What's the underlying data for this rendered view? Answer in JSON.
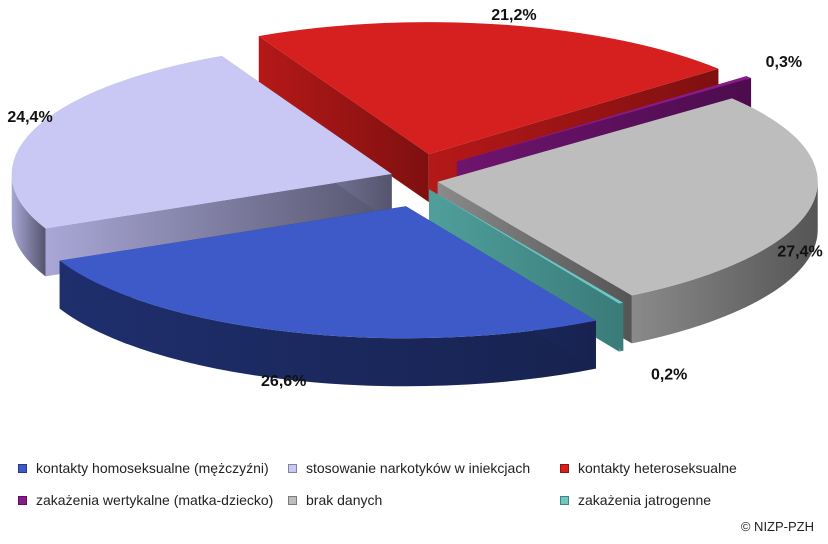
{
  "chart_data": {
    "type": "pie",
    "style": "3d-exploded",
    "slices": [
      {
        "name": "kontakty homoseksualne (mężczyźni)",
        "value": 26.6,
        "label": "26,6%",
        "color": "#3d5ac8"
      },
      {
        "name": "stosowanie narkotyków w iniekcjach",
        "value": 24.4,
        "label": "24,4%",
        "color": "#c9c8f4"
      },
      {
        "name": "kontakty heteroseksualne",
        "value": 21.2,
        "label": "21,2%",
        "color": "#d61f1f"
      },
      {
        "name": "zakażenia wertykalne (matka-dziecko)",
        "value": 0.3,
        "label": "0,3%",
        "color": "#8a1a8a"
      },
      {
        "name": "brak danych",
        "value": 27.4,
        "label": "27,4%",
        "color": "#bdbdbd"
      },
      {
        "name": "zakażenia jatrogenne",
        "value": 0.2,
        "label": "0,2%",
        "color": "#6ec7c4"
      }
    ]
  },
  "legend": [
    {
      "label": "kontakty homoseksualne (mężczyźni)",
      "color": "#3d5ac8"
    },
    {
      "label": "stosowanie narkotyków w iniekcjach",
      "color": "#c9c8f4"
    },
    {
      "label": "kontakty heteroseksualne",
      "color": "#d61f1f"
    },
    {
      "label": "zakażenia wertykalne (matka-dziecko)",
      "color": "#8a1a8a"
    },
    {
      "label": "brak danych",
      "color": "#bdbdbd"
    },
    {
      "label": "zakażenia jatrogenne",
      "color": "#6ec7c4"
    }
  ],
  "copyright": "© NIZP-PZH"
}
